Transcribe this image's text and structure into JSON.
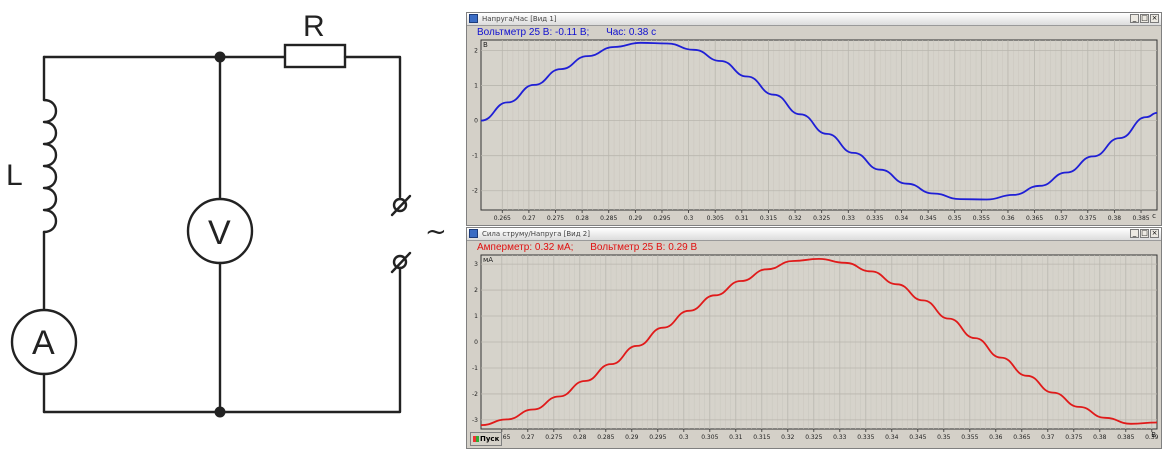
{
  "circuit": {
    "resistor_label": "R",
    "inductor_label": "L",
    "voltmeter_label": "V",
    "ammeter_label": "A",
    "source_label": "~"
  },
  "windows": [
    {
      "title": "Напруга/Час [Вид 1]",
      "readouts": [
        "Вольтметр 25 В: -0.11 В;",
        "Час: 0.38 с"
      ],
      "y_unit": "В",
      "x_unit": "c",
      "color": "#1f1fd6",
      "chart_data": {
        "type": "line",
        "x_ticks": [
          "0.265",
          "0.27",
          "0.275",
          "0.28",
          "0.285",
          "0.29",
          "0.295",
          "0.3",
          "0.305",
          "0.31",
          "0.315",
          "0.32",
          "0.325",
          "0.33",
          "0.335",
          "0.34",
          "0.345",
          "0.35",
          "0.355",
          "0.36",
          "0.365",
          "0.37",
          "0.375",
          "0.38",
          "0.385"
        ],
        "y_ticks": [
          "2",
          "1",
          "0",
          "-1",
          "-2"
        ],
        "xlim": [
          0.261,
          0.388
        ],
        "ylim": [
          -2.55,
          2.3
        ],
        "series": [
          {
            "values": [
              [
                0.261,
                0.0
              ],
              [
                0.266,
                0.52
              ],
              [
                0.271,
                1.02
              ],
              [
                0.276,
                1.47
              ],
              [
                0.281,
                1.84
              ],
              [
                0.286,
                2.1
              ],
              [
                0.291,
                2.22
              ],
              [
                0.296,
                2.2
              ],
              [
                0.301,
                2.02
              ],
              [
                0.306,
                1.7
              ],
              [
                0.311,
                1.26
              ],
              [
                0.316,
                0.74
              ],
              [
                0.321,
                0.18
              ],
              [
                0.326,
                -0.38
              ],
              [
                0.331,
                -0.92
              ],
              [
                0.336,
                -1.4
              ],
              [
                0.341,
                -1.8
              ],
              [
                0.346,
                -2.08
              ],
              [
                0.351,
                -2.24
              ],
              [
                0.356,
                -2.25
              ],
              [
                0.361,
                -2.12
              ],
              [
                0.366,
                -1.86
              ],
              [
                0.371,
                -1.48
              ],
              [
                0.376,
                -1.02
              ],
              [
                0.381,
                -0.5
              ],
              [
                0.386,
                0.1
              ],
              [
                0.388,
                0.22
              ]
            ]
          }
        ]
      }
    },
    {
      "title": "Сила струму/Напруга [Вид 2]",
      "readouts": [
        "Амперметр: 0.32 мА;",
        "Вольтметр 25 В: 0.29 В"
      ],
      "y_unit": "мА",
      "x_unit": "В",
      "color": "#e01a1a",
      "chart_data": {
        "type": "line",
        "x_ticks": [
          "0.265",
          "0.27",
          "0.275",
          "0.28",
          "0.285",
          "0.29",
          "0.295",
          "0.3",
          "0.305",
          "0.31",
          "0.315",
          "0.32",
          "0.325",
          "0.33",
          "0.335",
          "0.34",
          "0.345",
          "0.35",
          "0.355",
          "0.36",
          "0.365",
          "0.37",
          "0.375",
          "0.38",
          "0.385",
          "0.39"
        ],
        "y_ticks": [
          "3",
          "2",
          "1",
          "0",
          "-1",
          "-2",
          "-3"
        ],
        "xlim": [
          0.261,
          0.391
        ],
        "ylim": [
          -3.35,
          3.35
        ],
        "series": [
          {
            "values": [
              [
                0.261,
                -3.2
              ],
              [
                0.266,
                -2.98
              ],
              [
                0.271,
                -2.6
              ],
              [
                0.276,
                -2.1
              ],
              [
                0.281,
                -1.5
              ],
              [
                0.286,
                -0.85
              ],
              [
                0.291,
                -0.15
              ],
              [
                0.296,
                0.55
              ],
              [
                0.301,
                1.2
              ],
              [
                0.306,
                1.8
              ],
              [
                0.311,
                2.35
              ],
              [
                0.316,
                2.8
              ],
              [
                0.321,
                3.12
              ],
              [
                0.326,
                3.2
              ],
              [
                0.331,
                3.05
              ],
              [
                0.336,
                2.72
              ],
              [
                0.341,
                2.22
              ],
              [
                0.346,
                1.6
              ],
              [
                0.351,
                0.9
              ],
              [
                0.356,
                0.15
              ],
              [
                0.361,
                -0.6
              ],
              [
                0.366,
                -1.3
              ],
              [
                0.371,
                -1.95
              ],
              [
                0.376,
                -2.5
              ],
              [
                0.381,
                -2.92
              ],
              [
                0.386,
                -3.15
              ],
              [
                0.391,
                -3.1
              ]
            ]
          }
        ]
      }
    }
  ],
  "taskbar": {
    "start_label": "Пуск"
  }
}
